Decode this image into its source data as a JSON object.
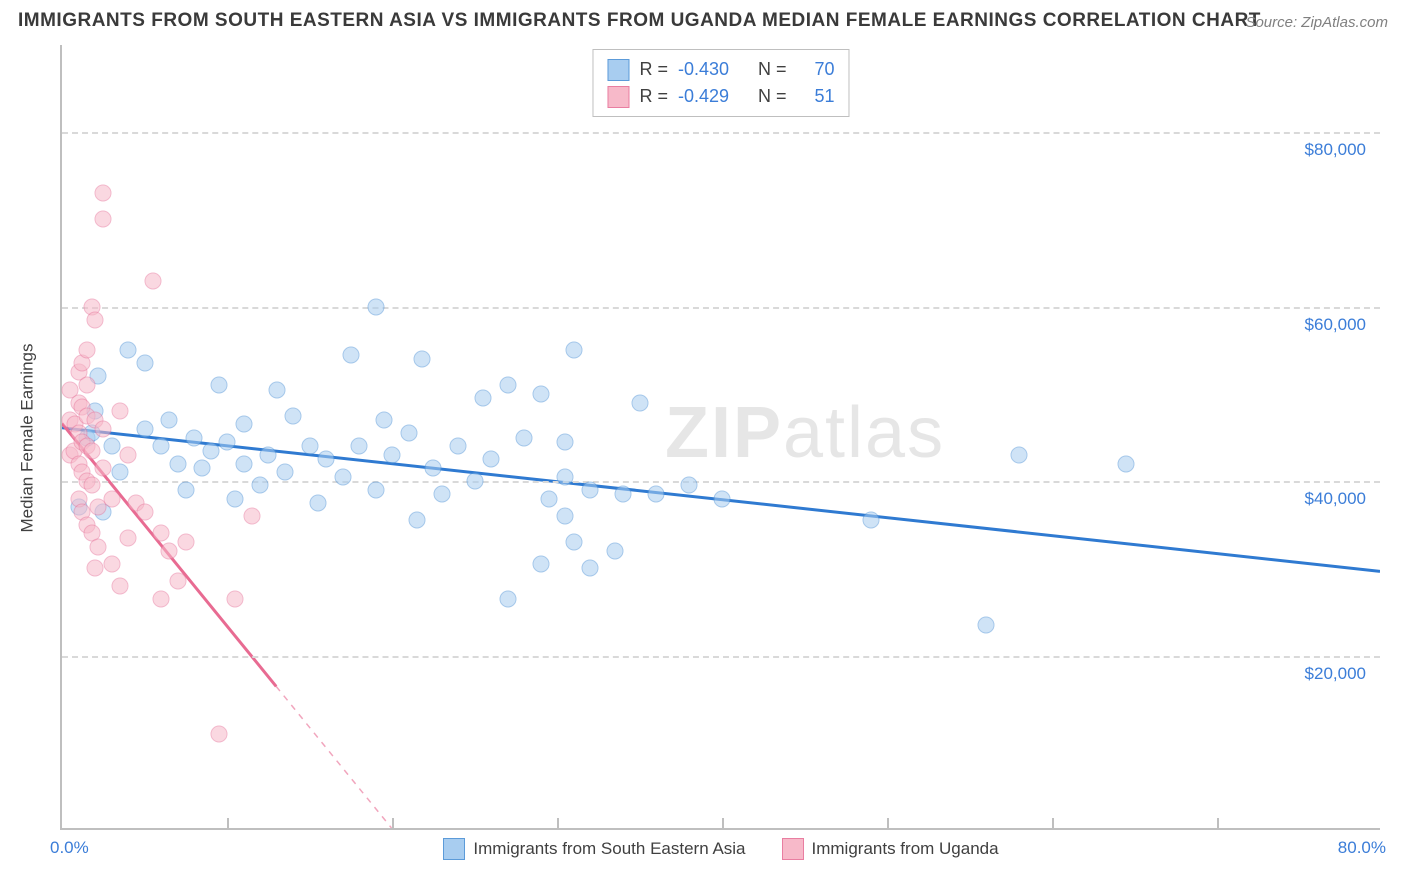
{
  "title": "IMMIGRANTS FROM SOUTH EASTERN ASIA VS IMMIGRANTS FROM UGANDA MEDIAN FEMALE EARNINGS CORRELATION CHART",
  "source": "Source: ZipAtlas.com",
  "ylabel": "Median Female Earnings",
  "watermark_a": "ZIP",
  "watermark_b": "atlas",
  "chart": {
    "type": "scatter-with-regression",
    "background_color": "#ffffff",
    "grid_color": "#d9d9d9",
    "axis_color": "#bfbfbf",
    "xlim": [
      0,
      80
    ],
    "ylim": [
      0,
      90000
    ],
    "x_tick_step": 10,
    "y_grid_values": [
      20000,
      40000,
      60000,
      80000
    ],
    "y_tick_labels": [
      "$20,000",
      "$40,000",
      "$60,000",
      "$80,000"
    ],
    "x_min_label": "0.0%",
    "x_max_label": "80.0%",
    "label_color": "#3b7dd8",
    "marker_radius": 8.5,
    "marker_opacity": 0.55,
    "line_width": 3,
    "series": [
      {
        "name": "Immigrants from South Eastern Asia",
        "color_fill": "#a8cdf0",
        "color_stroke": "#5c9bd9",
        "line_color": "#2f7ad1",
        "correlation_R": "-0.430",
        "N": "70",
        "regression": {
          "x1": 0,
          "y1": 46000,
          "x2": 80,
          "y2": 29500
        },
        "points": [
          [
            1.0,
            37000
          ],
          [
            1.5,
            45000
          ],
          [
            1.8,
            45500
          ],
          [
            2.0,
            48000
          ],
          [
            2.2,
            52000
          ],
          [
            2.5,
            36500
          ],
          [
            3.0,
            44000
          ],
          [
            3.5,
            41000
          ],
          [
            4.0,
            55000
          ],
          [
            5.0,
            46000
          ],
          [
            5.0,
            53500
          ],
          [
            6.0,
            44000
          ],
          [
            6.5,
            47000
          ],
          [
            7.0,
            42000
          ],
          [
            7.5,
            39000
          ],
          [
            8.0,
            45000
          ],
          [
            8.5,
            41500
          ],
          [
            9.0,
            43500
          ],
          [
            9.5,
            51000
          ],
          [
            10.0,
            44500
          ],
          [
            10.5,
            38000
          ],
          [
            11.0,
            42000
          ],
          [
            11.0,
            46500
          ],
          [
            12.0,
            39500
          ],
          [
            12.5,
            43000
          ],
          [
            13.0,
            50500
          ],
          [
            13.5,
            41000
          ],
          [
            14.0,
            47500
          ],
          [
            15.0,
            44000
          ],
          [
            15.5,
            37500
          ],
          [
            16.0,
            42500
          ],
          [
            17.0,
            40500
          ],
          [
            17.5,
            54500
          ],
          [
            18.0,
            44000
          ],
          [
            19.0,
            60000
          ],
          [
            19.0,
            39000
          ],
          [
            19.5,
            47000
          ],
          [
            20.0,
            43000
          ],
          [
            21.0,
            45500
          ],
          [
            21.5,
            35500
          ],
          [
            21.8,
            54000
          ],
          [
            22.5,
            41500
          ],
          [
            23.0,
            38500
          ],
          [
            24.0,
            44000
          ],
          [
            25.0,
            40000
          ],
          [
            25.5,
            49500
          ],
          [
            26.0,
            42500
          ],
          [
            27.0,
            51000
          ],
          [
            27.0,
            26500
          ],
          [
            28.0,
            45000
          ],
          [
            29.0,
            50000
          ],
          [
            29.0,
            30500
          ],
          [
            29.5,
            38000
          ],
          [
            30.5,
            40500
          ],
          [
            30.5,
            36000
          ],
          [
            30.5,
            44500
          ],
          [
            31.0,
            33000
          ],
          [
            31.0,
            55000
          ],
          [
            32.0,
            39000
          ],
          [
            32.0,
            30000
          ],
          [
            33.5,
            32000
          ],
          [
            34.0,
            38500
          ],
          [
            35.0,
            49000
          ],
          [
            36.0,
            38500
          ],
          [
            38.0,
            39500
          ],
          [
            40.0,
            38000
          ],
          [
            49.0,
            35500
          ],
          [
            56.0,
            23500
          ],
          [
            58.0,
            43000
          ],
          [
            64.5,
            42000
          ]
        ]
      },
      {
        "name": "Immigrants from Uganda",
        "color_fill": "#f7b9c9",
        "color_stroke": "#e97ea1",
        "line_color": "#e86b92",
        "correlation_R": "-0.429",
        "N": "51",
        "regression": {
          "x1": 0,
          "y1": 46500,
          "x2": 20,
          "y2": 0
        },
        "dashed_after_x": 13,
        "points": [
          [
            0.5,
            43000
          ],
          [
            0.5,
            47000
          ],
          [
            0.5,
            50500
          ],
          [
            0.7,
            43500
          ],
          [
            0.8,
            46500
          ],
          [
            1.0,
            38000
          ],
          [
            1.0,
            42000
          ],
          [
            1.0,
            45500
          ],
          [
            1.0,
            49000
          ],
          [
            1.0,
            52500
          ],
          [
            1.2,
            36500
          ],
          [
            1.2,
            41000
          ],
          [
            1.2,
            44500
          ],
          [
            1.2,
            48500
          ],
          [
            1.2,
            53500
          ],
          [
            1.5,
            35000
          ],
          [
            1.5,
            40000
          ],
          [
            1.5,
            44000
          ],
          [
            1.5,
            47500
          ],
          [
            1.5,
            51000
          ],
          [
            1.5,
            55000
          ],
          [
            1.8,
            60000
          ],
          [
            1.8,
            34000
          ],
          [
            1.8,
            39500
          ],
          [
            1.8,
            43500
          ],
          [
            2.0,
            47000
          ],
          [
            2.0,
            58500
          ],
          [
            2.0,
            30000
          ],
          [
            2.2,
            32500
          ],
          [
            2.2,
            37000
          ],
          [
            2.5,
            41500
          ],
          [
            2.5,
            46000
          ],
          [
            2.5,
            73000
          ],
          [
            2.5,
            70000
          ],
          [
            3.0,
            30500
          ],
          [
            3.0,
            38000
          ],
          [
            3.5,
            48000
          ],
          [
            3.5,
            28000
          ],
          [
            4.0,
            33500
          ],
          [
            4.0,
            43000
          ],
          [
            4.5,
            37500
          ],
          [
            5.0,
            36500
          ],
          [
            5.5,
            63000
          ],
          [
            6.0,
            26500
          ],
          [
            6.0,
            34000
          ],
          [
            6.5,
            32000
          ],
          [
            7.0,
            28500
          ],
          [
            7.5,
            33000
          ],
          [
            9.5,
            11000
          ],
          [
            10.5,
            26500
          ],
          [
            11.5,
            36000
          ]
        ]
      }
    ]
  },
  "bottom_legend": [
    {
      "label": "Immigrants from South Eastern Asia",
      "fill": "#a8cdf0",
      "stroke": "#5c9bd9"
    },
    {
      "label": "Immigrants from Uganda",
      "fill": "#f7b9c9",
      "stroke": "#e97ea1"
    }
  ]
}
